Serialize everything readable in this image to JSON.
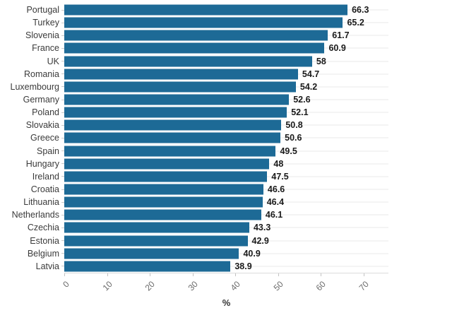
{
  "chart_data": {
    "type": "bar",
    "orientation": "horizontal",
    "title": "",
    "xlabel": "%",
    "ylabel": "",
    "legend": "none",
    "grid": "light horizontal line at each category row",
    "xlim": [
      0,
      76
    ],
    "xticks": [
      0,
      10,
      20,
      30,
      40,
      50,
      60,
      70
    ],
    "categories": [
      "Portugal",
      "Turkey",
      "Slovenia",
      "France",
      "UK",
      "Romania",
      "Luxembourg",
      "Germany",
      "Poland",
      "Slovakia",
      "Greece",
      "Spain",
      "Hungary",
      "Ireland",
      "Croatia",
      "Lithuania",
      "Netherlands",
      "Czechia",
      "Estonia",
      "Belgium",
      "Latvia"
    ],
    "values": [
      66.3,
      65.2,
      61.7,
      60.9,
      58,
      54.7,
      54.2,
      52.6,
      52.1,
      50.8,
      50.6,
      49.5,
      48,
      47.5,
      46.6,
      46.4,
      46.1,
      43.3,
      42.9,
      40.9,
      38.9
    ],
    "colors": {
      "bar": "#1d6a96",
      "gridline": "#e9e9e9",
      "axis_line": "#dcdcdc",
      "tick_mark": "#c2c2c2",
      "category_label": "#3b3b3b",
      "value_label": "#1a1a1a",
      "tick_label": "#6b6b6b",
      "ytick_mark": "#c9c9c9"
    }
  }
}
